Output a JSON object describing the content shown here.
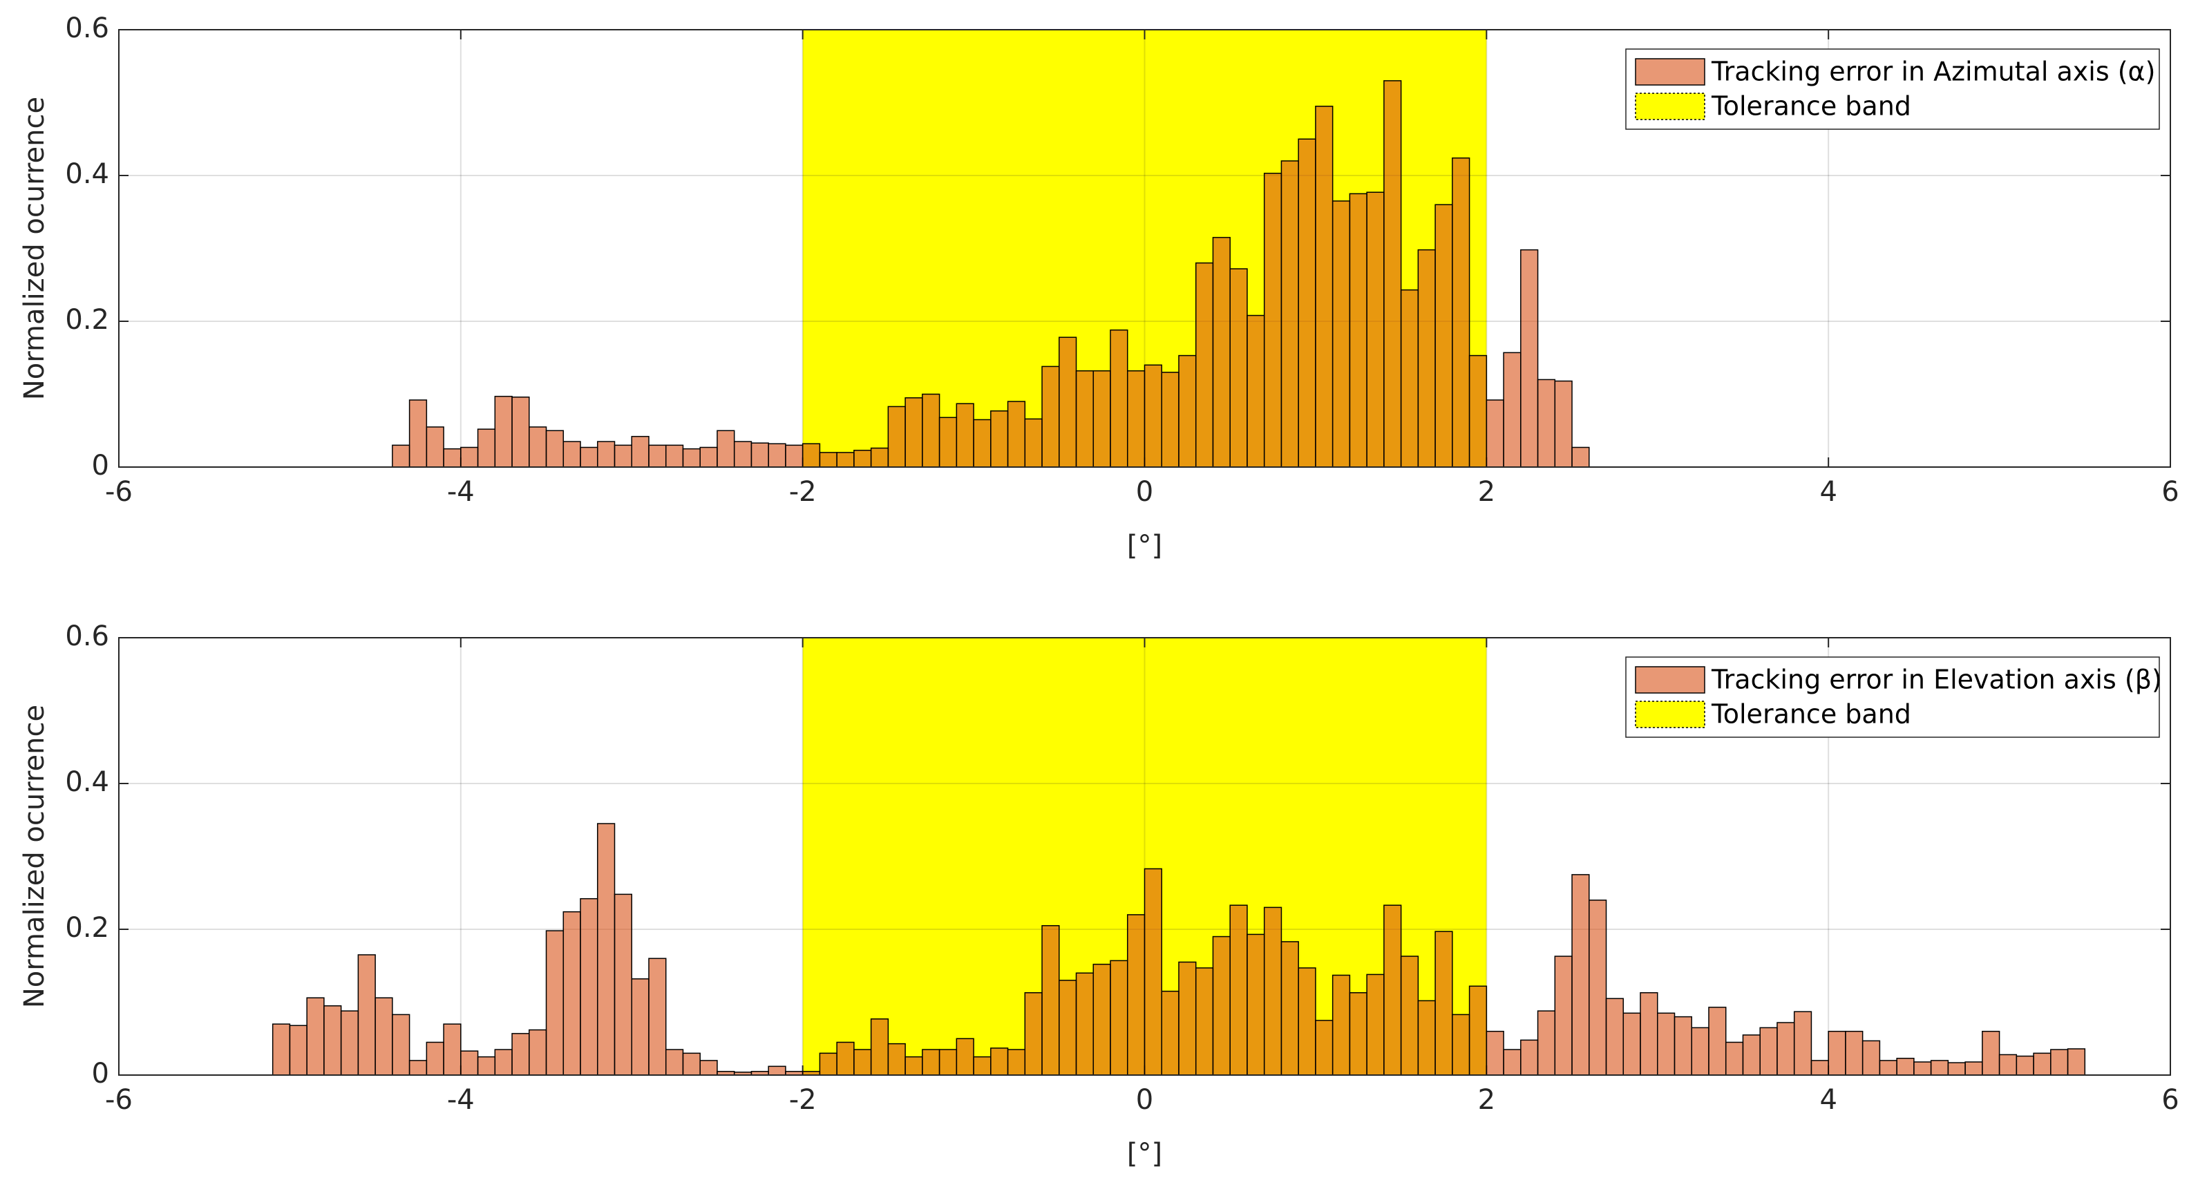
{
  "chart_data": [
    {
      "type": "histogram",
      "xlabel": "[°]",
      "ylabel": "Normalized ocurrence",
      "xlim": [
        -6,
        6
      ],
      "ylim": [
        0,
        0.6
      ],
      "xticks": [
        -6,
        -4,
        -2,
        0,
        2,
        4,
        6
      ],
      "yticks": [
        0,
        0.2,
        0.4,
        0.6
      ],
      "grid": true,
      "legend": "top-right",
      "band": {
        "name": "Tolerance band",
        "range": [
          -2,
          2
        ],
        "color": "#ffff00"
      },
      "bins": [
        -5.1,
        -5.0,
        -4.9,
        -4.8,
        -4.7,
        -4.6,
        -4.5,
        -4.4,
        -4.3,
        -4.2,
        -4.1,
        -4.0,
        -3.9,
        -3.8,
        -3.7,
        -3.6,
        -3.5,
        -3.4,
        -3.3,
        -3.2,
        -3.1,
        -3.0,
        -2.9,
        -2.8,
        -2.7,
        -2.6,
        -2.5,
        -2.4,
        -2.3,
        -2.2,
        -2.1,
        -2.0,
        -1.9,
        -1.8,
        -1.7,
        -1.6,
        -1.5,
        -1.4,
        -1.3,
        -1.2,
        -1.1,
        -1.0,
        -0.9,
        -0.8,
        -0.7,
        -0.6,
        -0.5,
        -0.4,
        -0.3,
        -0.2,
        -0.1,
        0.0,
        0.1,
        0.2,
        0.3,
        0.4,
        0.5,
        0.6,
        0.7,
        0.8,
        0.9,
        1.0,
        1.1,
        1.2,
        1.3,
        1.4,
        1.5,
        1.6,
        1.7,
        1.8,
        1.9,
        2.0,
        2.1,
        2.2,
        2.3,
        2.4,
        2.5,
        2.6,
        2.7,
        2.8,
        2.9,
        3.0,
        3.1
      ],
      "series": [
        {
          "name": "Tracking error in Azimutal axis (α)",
          "color": "#d95319",
          "alpha": 0.6,
          "values": [
            0,
            0,
            0,
            0,
            0,
            0,
            0,
            0.03,
            0.092,
            0.055,
            0.025,
            0.027,
            0.052,
            0.097,
            0.096,
            0.055,
            0.05,
            0.035,
            0.027,
            0.035,
            0.03,
            0.042,
            0.03,
            0.03,
            0.025,
            0.027,
            0.05,
            0.035,
            0.033,
            0.032,
            0.03,
            0.032,
            0.02,
            0.02,
            0.023,
            0.026,
            0.083,
            0.095,
            0.1,
            0.068,
            0.087,
            0.065,
            0.077,
            0.09,
            0.066,
            0.138,
            0.178,
            0.132,
            0.132,
            0.188,
            0.132,
            0.14,
            0.13,
            0.153,
            0.28,
            0.315,
            0.272,
            0.208,
            0.403,
            0.42,
            0.45,
            0.495,
            0.365,
            0.375,
            0.377,
            0.53,
            0.243,
            0.298,
            0.36,
            0.424,
            0.153,
            0.092,
            0.157,
            0.298,
            0.12,
            0.118,
            0.027,
            0,
            0,
            0,
            0,
            0
          ]
        }
      ]
    },
    {
      "type": "histogram",
      "xlabel": "[°]",
      "ylabel": "Normalized ocurrence",
      "xlim": [
        -6,
        6
      ],
      "ylim": [
        0,
        0.6
      ],
      "xticks": [
        -6,
        -4,
        -2,
        0,
        2,
        4,
        6
      ],
      "yticks": [
        0,
        0.2,
        0.4,
        0.6
      ],
      "grid": true,
      "legend": "top-right",
      "band": {
        "name": "Tolerance band",
        "range": [
          -2,
          2
        ],
        "color": "#ffff00"
      },
      "bins": [
        -5.1,
        -5.0,
        -4.9,
        -4.8,
        -4.7,
        -4.6,
        -4.5,
        -4.4,
        -4.3,
        -4.2,
        -4.1,
        -4.0,
        -3.9,
        -3.8,
        -3.7,
        -3.6,
        -3.5,
        -3.4,
        -3.3,
        -3.2,
        -3.1,
        -3.0,
        -2.9,
        -2.8,
        -2.7,
        -2.6,
        -2.5,
        -2.4,
        -2.3,
        -2.2,
        -2.1,
        -2.0,
        -1.9,
        -1.8,
        -1.7,
        -1.6,
        -1.5,
        -1.4,
        -1.3,
        -1.2,
        -1.1,
        -1.0,
        -0.9,
        -0.8,
        -0.7,
        -0.6,
        -0.5,
        -0.4,
        -0.3,
        -0.2,
        -0.1,
        0.0,
        0.1,
        0.2,
        0.3,
        0.4,
        0.5,
        0.6,
        0.7,
        0.8,
        0.9,
        1.0,
        1.1,
        1.2,
        1.3,
        1.4,
        1.5,
        1.6,
        1.7,
        1.8,
        1.9,
        2.0,
        2.1,
        2.2,
        2.3,
        2.4,
        2.5,
        2.6,
        2.7,
        2.8,
        2.9,
        3.0,
        3.1,
        3.2,
        3.3,
        3.4,
        3.5,
        3.6,
        3.7,
        3.8,
        3.9,
        4.0,
        4.1,
        4.2,
        4.3,
        4.4,
        4.5,
        4.6,
        4.7,
        4.8,
        4.9,
        5.0,
        5.1,
        5.2,
        5.3,
        5.4,
        5.5
      ],
      "series": [
        {
          "name": "Tracking error in Elevation axis (β)",
          "color": "#d95319",
          "alpha": 0.6,
          "values": [
            0.07,
            0.068,
            0.106,
            0.095,
            0.088,
            0.165,
            0.106,
            0.083,
            0.02,
            0.045,
            0.07,
            0.033,
            0.025,
            0.035,
            0.057,
            0.062,
            0.198,
            0.224,
            0.242,
            0.345,
            0.248,
            0.132,
            0.16,
            0.035,
            0.03,
            0.02,
            0.005,
            0.004,
            0.005,
            0.012,
            0.005,
            0.005,
            0.03,
            0.045,
            0.035,
            0.077,
            0.043,
            0.025,
            0.035,
            0.035,
            0.05,
            0.025,
            0.037,
            0.035,
            0.113,
            0.205,
            0.13,
            0.14,
            0.152,
            0.157,
            0.22,
            0.283,
            0.115,
            0.155,
            0.147,
            0.19,
            0.233,
            0.193,
            0.23,
            0.183,
            0.147,
            0.075,
            0.137,
            0.113,
            0.138,
            0.233,
            0.163,
            0.102,
            0.197,
            0.083,
            0.122,
            0.06,
            0.035,
            0.048,
            0.088,
            0.163,
            0.275,
            0.24,
            0.105,
            0.085,
            0.113,
            0.085,
            0.08,
            0.065,
            0.093,
            0.045,
            0.055,
            0.065,
            0.072,
            0.087,
            0.02,
            0.06,
            0.06,
            0.047,
            0.02,
            0.023,
            0.018,
            0.02,
            0.017,
            0.018,
            0.06,
            0.028,
            0.026,
            0.03,
            0.035,
            0.036
          ]
        }
      ]
    }
  ]
}
